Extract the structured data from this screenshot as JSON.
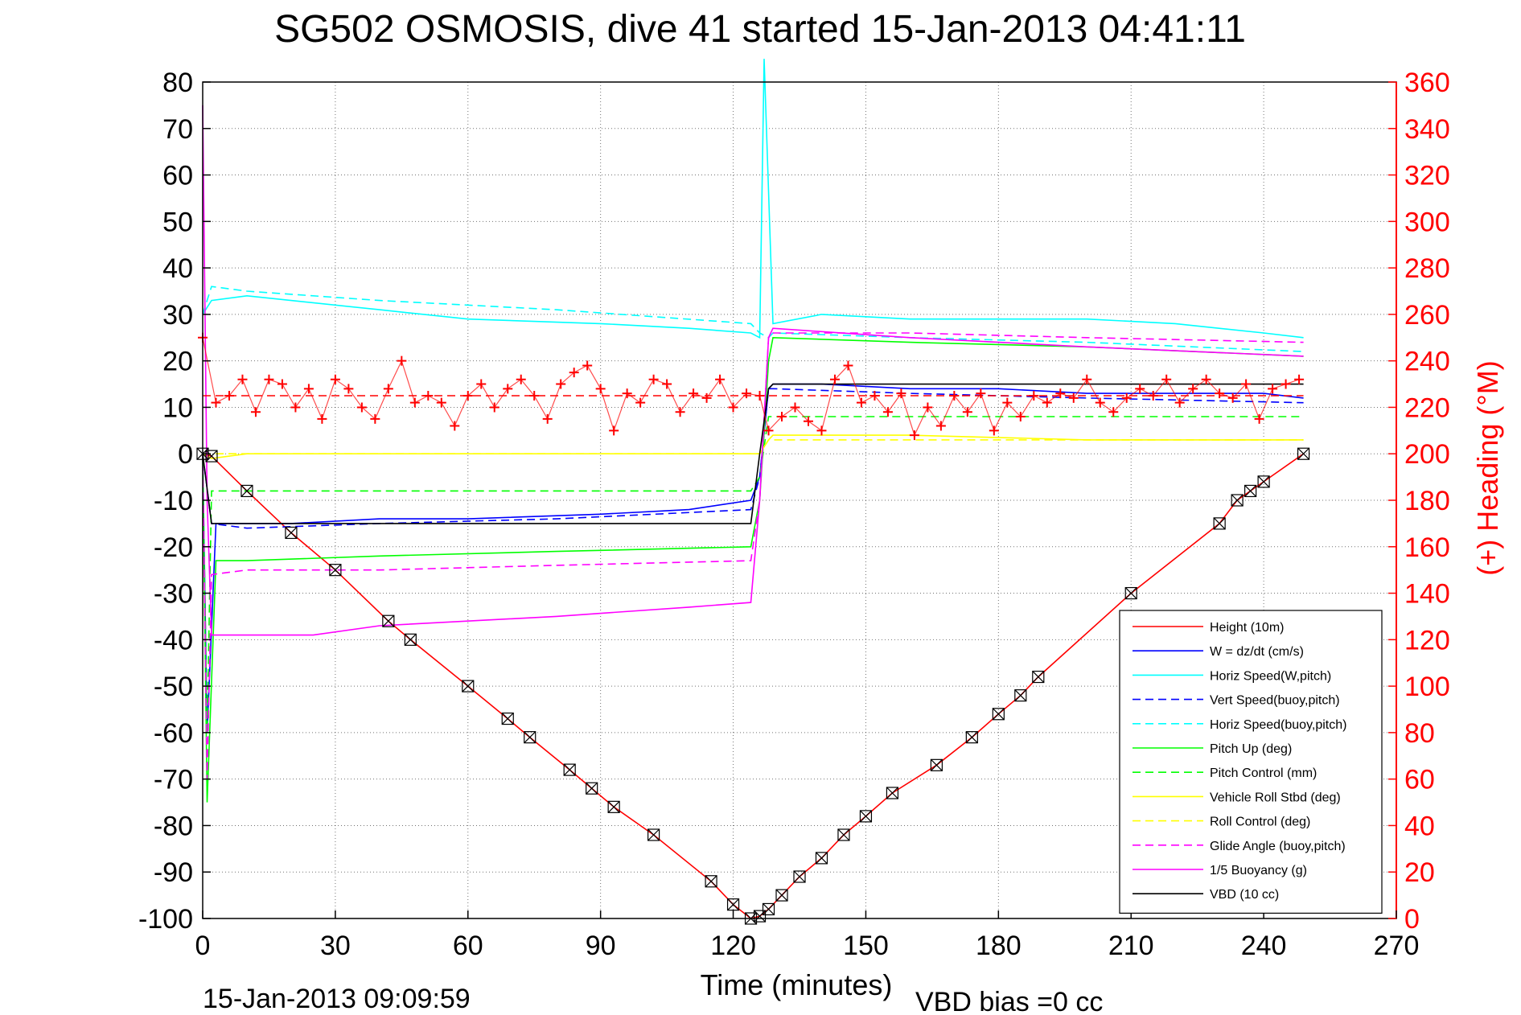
{
  "chart_data": {
    "type": "line",
    "title": "SG502 OSMOSIS, dive 41 started 15-Jan-2013 04:41:11",
    "xlabel": "Time (minutes)",
    "ylabel_right": "(+) Heading (°M)",
    "xlim": [
      0,
      270
    ],
    "ylim_left": [
      -100,
      80
    ],
    "ylim_right": [
      0,
      360
    ],
    "xticks": [
      "0",
      "30",
      "60",
      "90",
      "120",
      "150",
      "180",
      "210",
      "240",
      "270"
    ],
    "yticks_left": [
      "80",
      "70",
      "60",
      "50",
      "40",
      "30",
      "20",
      "10",
      "0",
      "-10",
      "-20",
      "-30",
      "-40",
      "-50",
      "-60",
      "-70",
      "-80",
      "-90",
      "-100"
    ],
    "yticks_right": [
      "360",
      "340",
      "320",
      "300",
      "280",
      "260",
      "240",
      "220",
      "200",
      "180",
      "160",
      "140",
      "120",
      "100",
      "80",
      "60",
      "40",
      "20",
      "0"
    ],
    "grid": true,
    "legend_position": "lower-right",
    "footer_left": "15-Jan-2013 09:09:59",
    "footer_right": "VBD bias =0 cc",
    "colors": {
      "height": "#ff0000",
      "w": "#0000ff",
      "horiz_w": "#00ffff",
      "vert_buoy": "#0000ff",
      "horiz_buoy": "#00ffff",
      "pitch": "#00ff00",
      "pitch_ctrl": "#00ff00",
      "roll": "#ffff00",
      "roll_ctrl": "#ffff00",
      "glide": "#ff00ff",
      "buoyancy": "#ff00ff",
      "vbd": "#000000",
      "heading": "#ff0000"
    },
    "series": [
      {
        "name": "Height (10m)",
        "style": "solid",
        "color": "#ff0000",
        "marker": "square-x",
        "x": [
          0,
          2,
          10,
          20,
          30,
          42,
          47,
          60,
          69,
          74,
          83,
          88,
          93,
          102,
          115,
          120,
          124,
          126,
          128,
          131,
          135,
          140,
          145,
          150,
          156,
          166,
          174,
          180,
          185,
          189,
          210,
          230,
          234,
          237,
          240,
          249
        ],
        "y": [
          0,
          -0.5,
          -8,
          -17,
          -25,
          -36,
          -40,
          -50,
          -57,
          -61,
          -68,
          -72,
          -76,
          -82,
          -92,
          -97,
          -100,
          -99.5,
          -98,
          -95,
          -91,
          -87,
          -82,
          -78,
          -73,
          -67,
          -61,
          -56,
          -52,
          -48,
          -30,
          -15,
          -10,
          -8,
          -6,
          0
        ]
      },
      {
        "name": "W = dz/dt (cm/s)",
        "style": "solid",
        "color": "#0000ff",
        "x": [
          0,
          1,
          3,
          10,
          20,
          40,
          60,
          90,
          110,
          124,
          126,
          128,
          129,
          140,
          160,
          180,
          200,
          220,
          240,
          249
        ],
        "y": [
          0,
          -60,
          -15,
          -15,
          -15,
          -14,
          -14,
          -13,
          -12,
          -10,
          -5,
          14,
          15,
          15,
          14,
          14,
          13,
          13,
          13,
          12
        ]
      },
      {
        "name": "Horiz Speed(W,pitch)",
        "style": "solid",
        "color": "#00ffff",
        "x": [
          0,
          2,
          10,
          20,
          40,
          60,
          90,
          110,
          124,
          126,
          127,
          129,
          140,
          160,
          180,
          200,
          220,
          240,
          249
        ],
        "y": [
          30,
          33,
          34,
          33,
          31,
          29,
          28,
          27,
          26,
          25,
          85,
          28,
          30,
          29,
          29,
          29,
          28,
          26,
          25
        ]
      },
      {
        "name": "Vert Speed(buoy,pitch)",
        "style": "dashed",
        "color": "#0000ff",
        "x": [
          0,
          2,
          10,
          40,
          80,
          124,
          126,
          128,
          129,
          160,
          200,
          249
        ],
        "y": [
          0,
          -15,
          -16,
          -15,
          -14,
          -12,
          -5,
          14,
          14,
          13,
          12,
          11
        ]
      },
      {
        "name": "Horiz Speed(buoy,pitch)",
        "style": "dashed",
        "color": "#00ffff",
        "x": [
          0,
          2,
          10,
          40,
          80,
          124,
          126,
          128,
          129,
          160,
          200,
          249
        ],
        "y": [
          30,
          36,
          35,
          33,
          31,
          28,
          26,
          25,
          26,
          25,
          24,
          22
        ]
      },
      {
        "name": "Pitch Up (deg)",
        "style": "solid",
        "color": "#00ff00",
        "x": [
          0,
          1,
          3,
          10,
          40,
          80,
          124,
          126,
          128,
          129,
          160,
          200,
          249
        ],
        "y": [
          0,
          -75,
          -23,
          -23,
          -22,
          -21,
          -20,
          -10,
          20,
          25,
          24,
          23,
          21
        ]
      },
      {
        "name": "Pitch Control (mm)",
        "style": "dashed",
        "color": "#00ff00",
        "x": [
          0,
          1,
          2,
          124,
          126,
          128,
          129,
          249
        ],
        "y": [
          0,
          -60,
          -8,
          -8,
          -5,
          8,
          8,
          8
        ]
      },
      {
        "name": "Vehicle Roll Stbd (deg)",
        "style": "solid",
        "color": "#ffff00",
        "x": [
          0,
          2,
          10,
          40,
          80,
          124,
          126,
          128,
          129,
          160,
          200,
          249
        ],
        "y": [
          0,
          -1,
          0,
          0,
          0,
          0,
          0,
          3,
          4,
          4,
          3,
          3
        ]
      },
      {
        "name": "Roll Control (deg)",
        "style": "dashed",
        "color": "#ffff00",
        "x": [
          0,
          2,
          124,
          126,
          128,
          249
        ],
        "y": [
          0,
          0,
          0,
          0,
          3,
          3
        ]
      },
      {
        "name": "Glide Angle (buoy,pitch)",
        "style": "dashed",
        "color": "#ff00ff",
        "x": [
          0,
          1,
          2,
          10,
          40,
          80,
          124,
          126,
          128,
          129,
          160,
          200,
          249
        ],
        "y": [
          0,
          -70,
          -26,
          -25,
          -25,
          -24,
          -23,
          -10,
          25,
          26,
          26,
          25,
          24
        ]
      },
      {
        "name": "1/5 Buoyancy (g)",
        "style": "solid",
        "color": "#ff00ff",
        "x": [
          0,
          1,
          2,
          25,
          40,
          80,
          110,
          124,
          126,
          128,
          129,
          160,
          200,
          249
        ],
        "y": [
          75,
          -10,
          -39,
          -39,
          -37,
          -35,
          -33,
          -32,
          -10,
          25,
          27,
          25,
          23,
          21
        ]
      },
      {
        "name": "VBD (10 cc)",
        "style": "solid",
        "color": "#000000",
        "x": [
          0,
          2,
          124,
          126,
          128,
          129,
          249
        ],
        "y": [
          0,
          -15,
          -15,
          0,
          14,
          15,
          15
        ]
      }
    ],
    "heading": {
      "name": "Heading",
      "axis": "right",
      "marker": "+",
      "color": "#ff0000",
      "x": [
        0,
        3,
        6,
        9,
        12,
        15,
        18,
        21,
        24,
        27,
        30,
        33,
        36,
        39,
        42,
        45,
        48,
        51,
        54,
        57,
        60,
        63,
        66,
        69,
        72,
        75,
        78,
        81,
        84,
        87,
        90,
        93,
        96,
        99,
        102,
        105,
        108,
        111,
        114,
        117,
        120,
        123,
        126,
        128,
        131,
        134,
        137,
        140,
        143,
        146,
        149,
        152,
        155,
        158,
        161,
        164,
        167,
        170,
        173,
        176,
        179,
        182,
        185,
        188,
        191,
        194,
        197,
        200,
        203,
        206,
        209,
        212,
        215,
        218,
        221,
        224,
        227,
        230,
        233,
        236,
        239,
        242,
        245,
        248
      ],
      "y": [
        250,
        222,
        225,
        232,
        218,
        232,
        230,
        220,
        228,
        215,
        232,
        228,
        220,
        215,
        228,
        240,
        222,
        225,
        222,
        212,
        225,
        230,
        220,
        228,
        232,
        225,
        215,
        230,
        235,
        238,
        228,
        210,
        226,
        222,
        232,
        230,
        218,
        226,
        224,
        232,
        220,
        226,
        225,
        210,
        216,
        220,
        214,
        210,
        232,
        238,
        222,
        225,
        218,
        226,
        208,
        220,
        212,
        225,
        218,
        226,
        210,
        222,
        216,
        225,
        222,
        226,
        224,
        232,
        222,
        218,
        224,
        228,
        225,
        232,
        222,
        228,
        232,
        226,
        224,
        230,
        215,
        228,
        230,
        232
      ]
    },
    "heading_target": {
      "axis": "right",
      "style": "dashed",
      "color": "#ff0000",
      "y": 225
    }
  }
}
